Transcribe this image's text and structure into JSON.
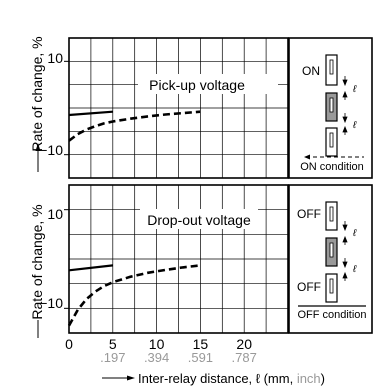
{
  "chart_data": [
    {
      "type": "line",
      "title": "Pick-up voltage",
      "ylabel": "Rate of change, %",
      "xlabel": "Inter-relay distance, ℓ (mm, inch)",
      "xlim": [
        0,
        25
      ],
      "ylim": [
        -15,
        15
      ],
      "ytick_labels": [
        "10",
        "−10"
      ],
      "ytick_values": [
        10,
        -10
      ],
      "series": [
        {
          "name": "ON condition",
          "style": "solid",
          "x": [
            0,
            5
          ],
          "y": [
            -1.5,
            -0.8
          ]
        },
        {
          "name": "OFF condition",
          "style": "dashed",
          "x": [
            0,
            1,
            2,
            3,
            4,
            5,
            7,
            9,
            11,
            13,
            15
          ],
          "y": [
            -7.0,
            -5.6,
            -4.6,
            -3.9,
            -3.3,
            -2.9,
            -2.3,
            -1.8,
            -1.4,
            -1.1,
            -0.8
          ]
        }
      ],
      "legend": {
        "top_label": "ON",
        "condition_label": "ON condition",
        "distance_symbol": "ℓ"
      }
    },
    {
      "type": "line",
      "title": "Drop-out voltage",
      "ylabel": "Rate of change, %",
      "xlabel": "Inter-relay distance, ℓ (mm, inch)",
      "xlim": [
        0,
        25
      ],
      "ylim": [
        -15,
        15
      ],
      "ytick_labels": [
        "10",
        "−10"
      ],
      "ytick_values": [
        10,
        -10
      ],
      "series": [
        {
          "name": "ON condition",
          "style": "solid",
          "x": [
            0,
            5
          ],
          "y": [
            -2.3,
            -1.3
          ]
        },
        {
          "name": "OFF condition",
          "style": "dashed",
          "x": [
            0,
            1,
            2,
            3,
            4,
            5,
            7,
            9,
            11,
            13,
            15
          ],
          "y": [
            -13.5,
            -10.3,
            -8.1,
            -6.6,
            -5.5,
            -4.7,
            -3.6,
            -2.8,
            -2.2,
            -1.7,
            -1.3
          ]
        }
      ],
      "legend": {
        "top_label": "OFF",
        "bottom_label": "OFF",
        "condition_label": "OFF condition",
        "distance_symbol": "ℓ"
      }
    }
  ],
  "x_axis": {
    "mm_ticks": [
      "0",
      "5",
      "10",
      "15",
      "20"
    ],
    "inch_ticks": [
      ".197",
      ".394",
      ".591",
      ".787"
    ],
    "label_main": "Inter-relay distance, ℓ (mm, ",
    "label_inch": "inch",
    "label_end": ")"
  },
  "y_axis_label": "Rate of change, %",
  "colors": {
    "ink": "#000000",
    "inch": "#999999",
    "relay_fill": "#999999",
    "grid": "#000000"
  }
}
